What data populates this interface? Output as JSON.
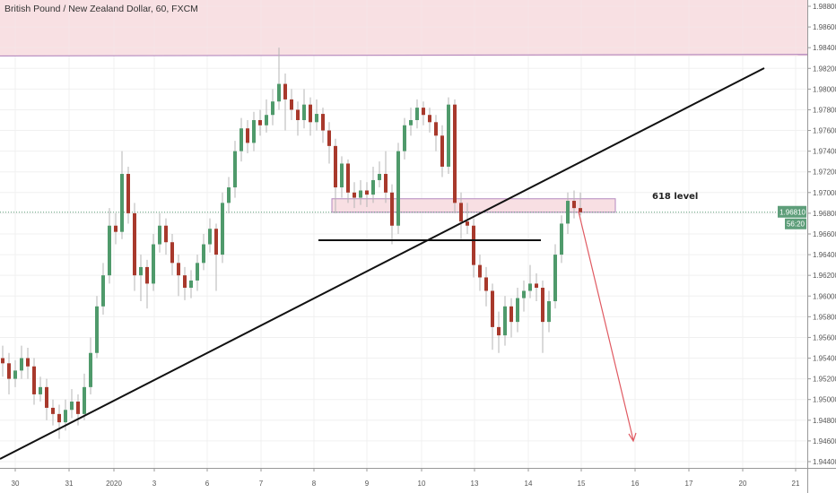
{
  "header": {
    "title": "British Pound / New Zealand Dollar, 60, FXCM"
  },
  "colors": {
    "bull": "#4f9a6b",
    "bear": "#a8392c",
    "wick": "#b4b4b4",
    "zone": "#f8dfe3",
    "zone_line": "#b58abf",
    "trendline": "#111111",
    "arrow": "#e05a62",
    "price_tag": "#5e9e7a",
    "grid": "#f0f0f0"
  },
  "chart_data": {
    "type": "candlestick",
    "ylim": [
      1.9432,
      1.9892
    ],
    "y_ticks": [
      "1.98800",
      "1.98600",
      "1.98400",
      "1.98200",
      "1.98000",
      "1.97800",
      "1.97600",
      "1.97400",
      "1.97200",
      "1.97000",
      "1.96800",
      "1.96600",
      "1.96400",
      "1.96200",
      "1.96000",
      "1.95800",
      "1.95600",
      "1.95400",
      "1.95200",
      "1.95000",
      "1.94800",
      "1.94600",
      "1.94400"
    ],
    "x_ticks": [
      "30",
      "31",
      "2020",
      "3",
      "6",
      "7",
      "8",
      "9",
      "10",
      "13",
      "14",
      "15",
      "16",
      "17",
      "20",
      "21"
    ],
    "grid": true,
    "last_price": "1.96810",
    "countdown": "56:20",
    "annotations": {
      "level_label": "618 level"
    },
    "candles": [
      [
        1.954,
        1.9552,
        1.9522,
        1.9535
      ],
      [
        1.9535,
        1.9545,
        1.9505,
        1.952
      ],
      [
        1.952,
        1.9538,
        1.9512,
        1.9528
      ],
      [
        1.9528,
        1.9552,
        1.952,
        1.954
      ],
      [
        1.954,
        1.955,
        1.952,
        1.9532
      ],
      [
        1.9532,
        1.954,
        1.9495,
        1.9505
      ],
      [
        1.9505,
        1.9522,
        1.9498,
        1.9512
      ],
      [
        1.9512,
        1.952,
        1.948,
        1.9492
      ],
      [
        1.9492,
        1.95,
        1.9475,
        1.9486
      ],
      [
        1.9486,
        1.9495,
        1.9462,
        1.9478
      ],
      [
        1.9478,
        1.95,
        1.947,
        1.949
      ],
      [
        1.949,
        1.951,
        1.9482,
        1.9498
      ],
      [
        1.9498,
        1.9505,
        1.9475,
        1.9486
      ],
      [
        1.9486,
        1.9525,
        1.948,
        1.9512
      ],
      [
        1.9512,
        1.956,
        1.9505,
        1.9545
      ],
      [
        1.9545,
        1.96,
        1.954,
        1.959
      ],
      [
        1.959,
        1.9632,
        1.9582,
        1.962
      ],
      [
        1.962,
        1.9685,
        1.9612,
        1.9668
      ],
      [
        1.9668,
        1.968,
        1.965,
        1.9662
      ],
      [
        1.9662,
        1.974,
        1.9655,
        1.9718
      ],
      [
        1.9718,
        1.9725,
        1.967,
        1.968
      ],
      [
        1.968,
        1.969,
        1.9605,
        1.962
      ],
      [
        1.962,
        1.964,
        1.9595,
        1.9628
      ],
      [
        1.9628,
        1.9635,
        1.9588,
        1.9612
      ],
      [
        1.9612,
        1.966,
        1.9605,
        1.965
      ],
      [
        1.965,
        1.968,
        1.9642,
        1.9668
      ],
      [
        1.9668,
        1.9675,
        1.964,
        1.9652
      ],
      [
        1.9652,
        1.966,
        1.962,
        1.9632
      ],
      [
        1.9632,
        1.964,
        1.96,
        1.962
      ],
      [
        1.962,
        1.9628,
        1.9596,
        1.9608
      ],
      [
        1.9608,
        1.9625,
        1.9598,
        1.9615
      ],
      [
        1.9615,
        1.964,
        1.9605,
        1.9632
      ],
      [
        1.9632,
        1.966,
        1.9625,
        1.965
      ],
      [
        1.965,
        1.9675,
        1.9642,
        1.9665
      ],
      [
        1.9665,
        1.967,
        1.9605,
        1.964
      ],
      [
        1.964,
        1.97,
        1.9632,
        1.969
      ],
      [
        1.969,
        1.9715,
        1.968,
        1.9705
      ],
      [
        1.9705,
        1.975,
        1.9695,
        1.974
      ],
      [
        1.974,
        1.9772,
        1.973,
        1.9762
      ],
      [
        1.9762,
        1.977,
        1.9738,
        1.9748
      ],
      [
        1.9748,
        1.9778,
        1.974,
        1.977
      ],
      [
        1.977,
        1.978,
        1.9755,
        1.9765
      ],
      [
        1.9765,
        1.979,
        1.9758,
        1.9775
      ],
      [
        1.9775,
        1.98,
        1.9765,
        1.9788
      ],
      [
        1.9788,
        1.984,
        1.978,
        1.9805
      ],
      [
        1.9805,
        1.9815,
        1.976,
        1.979
      ],
      [
        1.979,
        1.98,
        1.977,
        1.978
      ],
      [
        1.978,
        1.9788,
        1.9755,
        1.977
      ],
      [
        1.977,
        1.98,
        1.9762,
        1.9785
      ],
      [
        1.9785,
        1.9792,
        1.9755,
        1.9768
      ],
      [
        1.9768,
        1.979,
        1.976,
        1.9776
      ],
      [
        1.9776,
        1.9782,
        1.9748,
        1.976
      ],
      [
        1.976,
        1.9768,
        1.9728,
        1.9745
      ],
      [
        1.9745,
        1.9752,
        1.968,
        1.9705
      ],
      [
        1.9705,
        1.9735,
        1.9695,
        1.9728
      ],
      [
        1.9728,
        1.9732,
        1.969,
        1.97
      ],
      [
        1.97,
        1.971,
        1.9685,
        1.9695
      ],
      [
        1.9695,
        1.9712,
        1.9688,
        1.9702
      ],
      [
        1.9702,
        1.971,
        1.9686,
        1.9698
      ],
      [
        1.9698,
        1.9725,
        1.969,
        1.9712
      ],
      [
        1.9712,
        1.973,
        1.9705,
        1.9718
      ],
      [
        1.9718,
        1.974,
        1.969,
        1.97
      ],
      [
        1.97,
        1.9708,
        1.965,
        1.9668
      ],
      [
        1.9668,
        1.9748,
        1.966,
        1.974
      ],
      [
        1.974,
        1.9772,
        1.9732,
        1.9765
      ],
      [
        1.9765,
        1.9782,
        1.9755,
        1.977
      ],
      [
        1.977,
        1.979,
        1.9762,
        1.9782
      ],
      [
        1.9782,
        1.9788,
        1.9765,
        1.9775
      ],
      [
        1.9775,
        1.9782,
        1.9758,
        1.9768
      ],
      [
        1.9768,
        1.9775,
        1.974,
        1.9755
      ],
      [
        1.9755,
        1.9765,
        1.9715,
        1.9725
      ],
      [
        1.9725,
        1.9792,
        1.9718,
        1.9785
      ],
      [
        1.9785,
        1.979,
        1.968,
        1.969
      ],
      [
        1.969,
        1.97,
        1.9655,
        1.9672
      ],
      [
        1.9672,
        1.969,
        1.966,
        1.9668
      ],
      [
        1.9668,
        1.9675,
        1.9618,
        1.963
      ],
      [
        1.963,
        1.964,
        1.9605,
        1.9618
      ],
      [
        1.9618,
        1.9628,
        1.959,
        1.9605
      ],
      [
        1.9605,
        1.9612,
        1.9548,
        1.957
      ],
      [
        1.957,
        1.9585,
        1.9545,
        1.9562
      ],
      [
        1.9562,
        1.96,
        1.9552,
        1.959
      ],
      [
        1.959,
        1.9598,
        1.956,
        1.9575
      ],
      [
        1.9575,
        1.9608,
        1.9565,
        1.9598
      ],
      [
        1.9598,
        1.9615,
        1.9585,
        1.9605
      ],
      [
        1.9605,
        1.963,
        1.9598,
        1.9612
      ],
      [
        1.9612,
        1.9622,
        1.9595,
        1.9608
      ],
      [
        1.9608,
        1.9615,
        1.9545,
        1.9575
      ],
      [
        1.9575,
        1.9605,
        1.9565,
        1.9595
      ],
      [
        1.9595,
        1.965,
        1.9588,
        1.964
      ],
      [
        1.964,
        1.9678,
        1.9632,
        1.967
      ],
      [
        1.967,
        1.97,
        1.966,
        1.9692
      ],
      [
        1.9692,
        1.9702,
        1.9675,
        1.9685
      ],
      [
        1.9685,
        1.97,
        1.9678,
        1.9681
      ]
    ]
  }
}
